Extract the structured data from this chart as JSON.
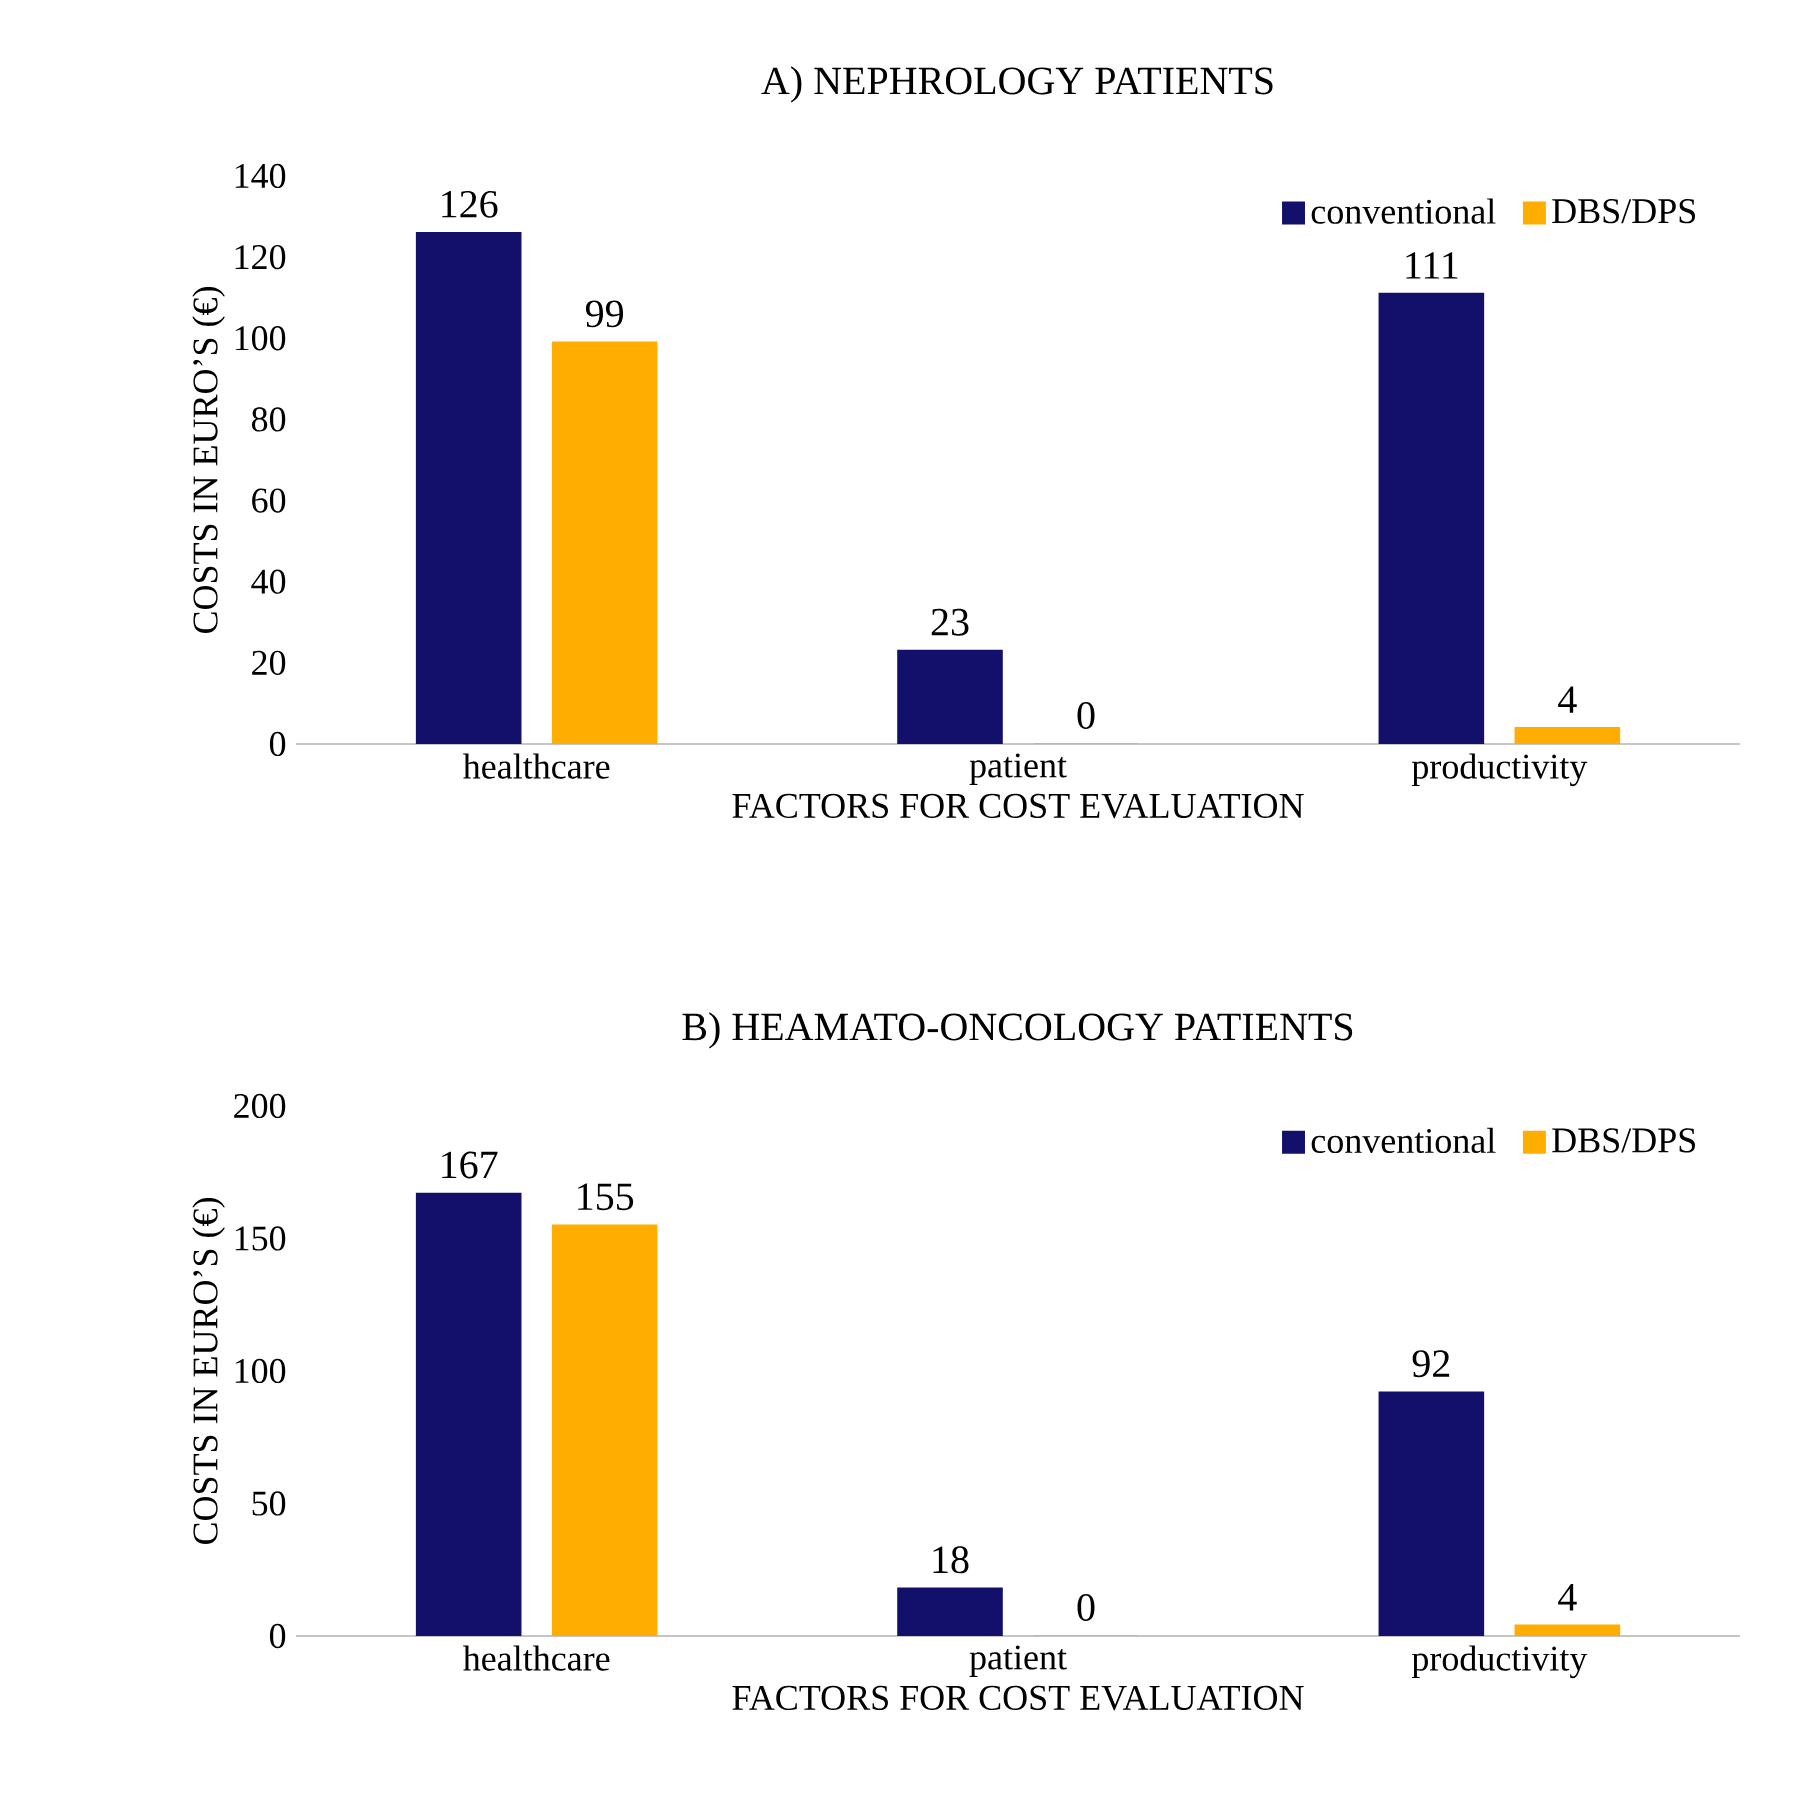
{
  "chart_data": [
    {
      "type": "bar",
      "title": "A) NEPHROLOGY PATIENTS",
      "xlabel": "FACTORS FOR COST EVALUATION",
      "ylabel": "COSTS IN EURO’S (€)",
      "categories": [
        "healthcare",
        "patient",
        "productivity"
      ],
      "series": [
        {
          "name": "conventional",
          "color": "#12106b",
          "values": [
            126,
            23,
            111
          ]
        },
        {
          "name": "DBS/DPS",
          "color": "#ffad00",
          "values": [
            99,
            0,
            4
          ]
        }
      ],
      "ylim": [
        0,
        140
      ],
      "yticks": [
        0,
        20,
        40,
        60,
        80,
        100,
        120,
        140
      ],
      "data_labels": true,
      "legend": "top right"
    },
    {
      "type": "bar",
      "title": "B) HEAMATO-ONCOLOGY PATIENTS",
      "xlabel": "FACTORS FOR COST EVALUATION",
      "ylabel": "COSTS IN EURO’S (€)",
      "categories": [
        "healthcare",
        "patient",
        "productivity"
      ],
      "series": [
        {
          "name": "conventional",
          "color": "#12106b",
          "values": [
            167,
            18,
            92
          ]
        },
        {
          "name": "DBS/DPS",
          "color": "#ffad00",
          "values": [
            155,
            0,
            4
          ]
        }
      ],
      "ylim": [
        0,
        200
      ],
      "yticks": [
        0,
        50,
        100,
        150,
        200
      ],
      "data_labels": true,
      "legend": "top right"
    }
  ]
}
